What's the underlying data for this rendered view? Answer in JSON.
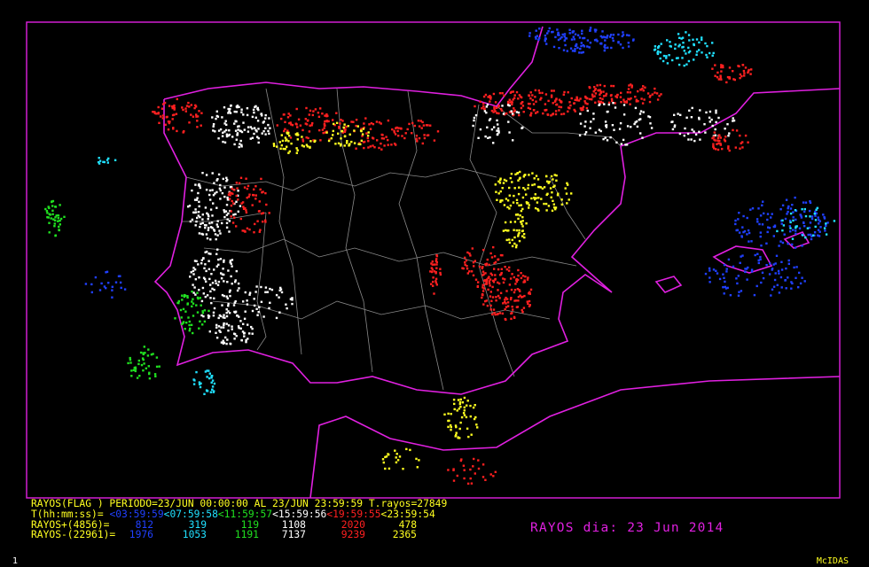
{
  "legend": {
    "header": "RAYOS(FLAG ) PERIODO=23/JUN 00:00:00 AL 23/JUN 23:59:59  T.rayos=27849",
    "time_label": "T(hh:mm:ss)=",
    "periods": [
      {
        "label": "<03:59:59",
        "color": "#2040ff"
      },
      {
        "label": "<07:59:58",
        "color": "#20e0ff"
      },
      {
        "label": "<11:59:57",
        "color": "#20e020"
      },
      {
        "label": "<15:59:56",
        "color": "#ffffff"
      },
      {
        "label": "<19:59:55",
        "color": "#ff2020"
      },
      {
        "label": "<23:59:54",
        "color": "#ffff20"
      }
    ],
    "positive": {
      "label": "RAYOS+(4856)=",
      "counts": [
        812,
        319,
        119,
        1108,
        2020,
        478
      ]
    },
    "negative": {
      "label": "RAYOS-(22961)=",
      "counts": [
        1976,
        1053,
        1191,
        7137,
        9239,
        2365
      ]
    }
  },
  "title": "RAYOS dia: 23 Jun 2014",
  "footer": {
    "page": "1",
    "brand": "McIDAS"
  }
}
